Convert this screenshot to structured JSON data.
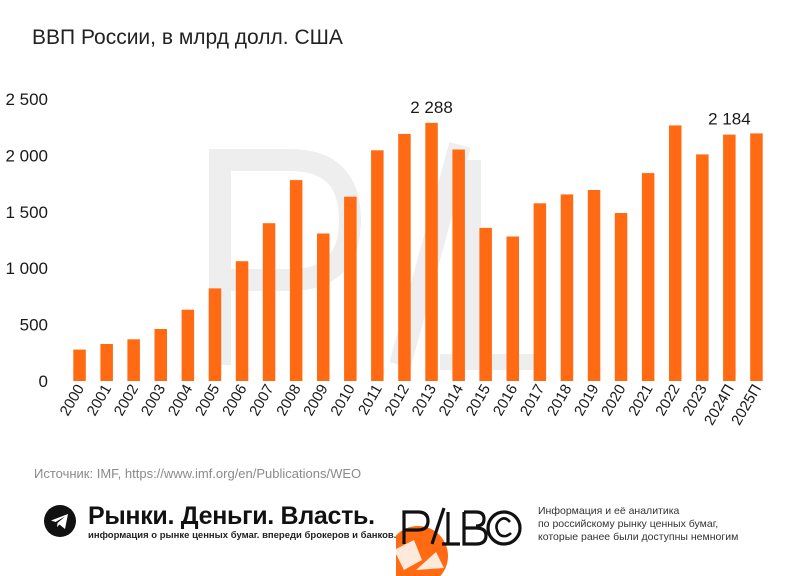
{
  "title": "ВВП России, в млрд долл. США",
  "source": "Источник: IMF, https://www.imf.org/en/Publications/WEO",
  "footer": {
    "brand": "Рынки. Деньги. Власть.",
    "tagline": "информация о рынке ценных бумаг. впереди брокеров и банков.",
    "logo_text": "PДB©",
    "info_lines": [
      "Информация и её аналитика",
      "по российскому рынку ценных бумаг,",
      "которые ранее были доступны немногим"
    ],
    "icon": "telegram-icon"
  },
  "colors": {
    "bar": "#ff6a13",
    "accent": "#ff6a13",
    "text": "#1a1a1a"
  },
  "chart_data": {
    "type": "bar",
    "title": "ВВП России, в млрд долл. США",
    "xlabel": "",
    "ylabel": "",
    "ylim": [
      0,
      2500
    ],
    "yticks": [
      0,
      500,
      1000,
      1500,
      2000,
      2500
    ],
    "ytick_labels": [
      "0",
      "500",
      "1 000",
      "1 500",
      "2 000",
      "2 500"
    ],
    "grid": false,
    "categories": [
      "2000",
      "2001",
      "2002",
      "2003",
      "2004",
      "2005",
      "2006",
      "2007",
      "2008",
      "2009",
      "2010",
      "2011",
      "2012",
      "2013",
      "2014",
      "2015",
      "2016",
      "2017",
      "2018",
      "2019",
      "2020",
      "2021",
      "2022",
      "2023",
      "2024П",
      "2025П"
    ],
    "values": [
      278,
      328,
      370,
      461,
      632,
      821,
      1062,
      1399,
      1781,
      1308,
      1634,
      2045,
      2191,
      2288,
      2052,
      1357,
      1281,
      1575,
      1654,
      1693,
      1489,
      1843,
      2266,
      2009,
      2184,
      2195
    ],
    "data_labels": [
      {
        "index": 13,
        "text": "2 288"
      },
      {
        "index": 24,
        "text": "2 184"
      }
    ]
  }
}
